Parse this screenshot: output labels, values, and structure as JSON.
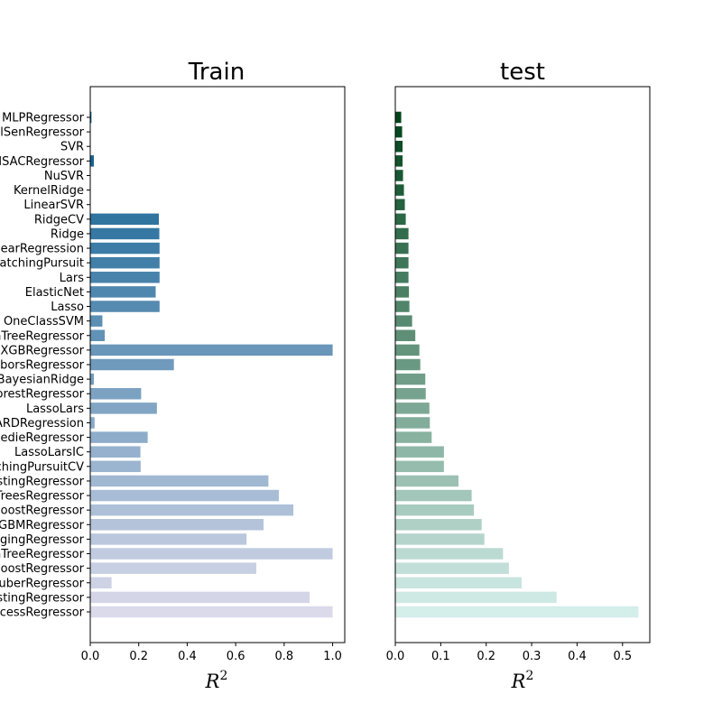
{
  "chart_data": [
    {
      "type": "bar",
      "orientation": "horizontal",
      "title": "Train",
      "xlabel": "R",
      "xlabel_superscript": "2",
      "xlim": [
        0,
        1.05
      ],
      "xticks": [
        "0.0",
        "0.2",
        "0.4",
        "0.6",
        "0.8",
        "1.0"
      ],
      "categories": [
        "MLPRegressor",
        "TheilSenRegressor",
        "SVR",
        "RANSACRegressor",
        "NuSVR",
        "KernelRidge",
        "LinearSVR",
        "RidgeCV",
        "Ridge",
        "LinearRegression",
        "OrthogonalMatchingPursuit",
        "Lars",
        "ElasticNet",
        "Lasso",
        "OneClassSVM",
        "DecisionTreeRegressor",
        "XGBRegressor",
        "KNeighborsRegressor",
        "BayesianRidge",
        "RandomForestRegressor",
        "LassoLars",
        "ARDRegression",
        "TweedieRegressor",
        "LassoLarsIC",
        "OrthogonalMatchingPursuitCV",
        "GradientBoostingRegressor",
        "ExtraTreesRegressor",
        "AdaBoostRegressor",
        "LGBMRegressor",
        "BaggingRegressor",
        "ExtraTreeRegressor",
        "CatBoostRegressor",
        "HuberRegressor",
        "HistGradientBoostingRegressor",
        "GaussianProcessRegressor"
      ],
      "values": [
        0.005,
        0.0,
        0.0,
        0.015,
        0.0,
        0.0,
        0.0,
        0.283,
        0.285,
        0.286,
        0.286,
        0.286,
        0.27,
        0.286,
        0.05,
        0.06,
        1.0,
        0.345,
        0.015,
        0.21,
        0.275,
        0.018,
        0.237,
        0.207,
        0.208,
        0.735,
        0.778,
        0.838,
        0.715,
        0.645,
        1.0,
        0.685,
        0.088,
        0.905,
        1.0
      ]
    },
    {
      "type": "bar",
      "orientation": "horizontal",
      "title": "test",
      "xlabel": "R",
      "xlabel_superscript": "2",
      "xlim": [
        0,
        0.56
      ],
      "xticks": [
        "0.0",
        "0.1",
        "0.2",
        "0.3",
        "0.4",
        "0.5"
      ],
      "values": [
        0.013,
        0.015,
        0.016,
        0.016,
        0.017,
        0.019,
        0.021,
        0.023,
        0.029,
        0.029,
        0.029,
        0.029,
        0.03,
        0.031,
        0.037,
        0.044,
        0.053,
        0.055,
        0.066,
        0.067,
        0.075,
        0.076,
        0.08,
        0.107,
        0.107,
        0.139,
        0.168,
        0.173,
        0.19,
        0.196,
        0.237,
        0.25,
        0.278,
        0.355,
        0.535
      ]
    }
  ],
  "colors": {
    "train_dark": "#045a8d",
    "train_light": "#dadaeb",
    "test_dark": "#00441b",
    "test_light": "#d4eeea"
  }
}
